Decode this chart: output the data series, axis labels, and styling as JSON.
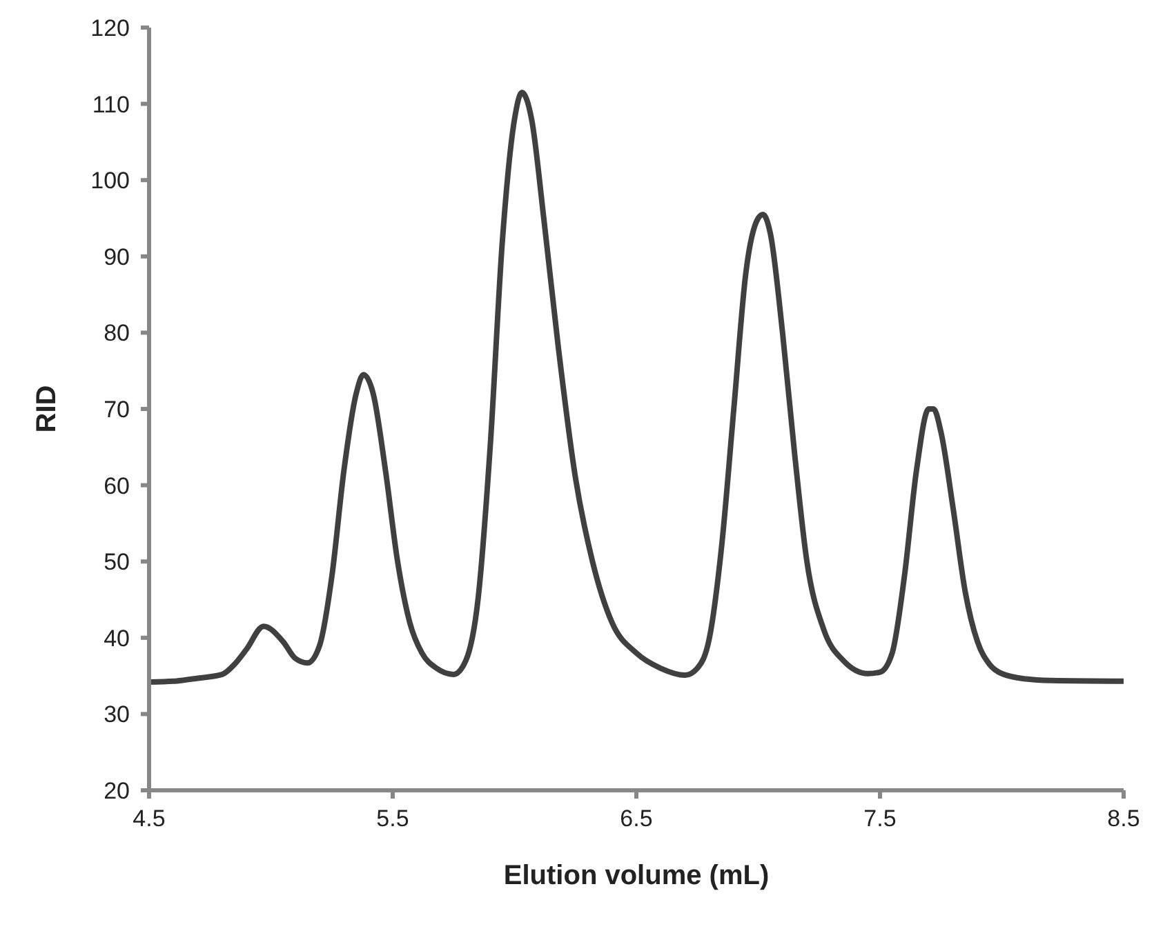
{
  "chart_data": {
    "type": "line",
    "xlabel": "Elution volume (mL)",
    "ylabel": "RID",
    "xlim": [
      4.5,
      8.5
    ],
    "xticks": [
      4.5,
      5.5,
      6.5,
      7.5,
      8.5
    ],
    "ylim": [
      20,
      120
    ],
    "yticks": [
      20,
      30,
      40,
      50,
      60,
      70,
      80,
      90,
      100,
      110,
      120
    ],
    "grid": false,
    "legend": false,
    "marker": "none",
    "line_style": "solid",
    "series": [
      {
        "color": "#404040",
        "x": [
          4.5,
          4.6,
          4.7,
          4.8,
          4.85,
          4.9,
          4.97,
          5.05,
          5.1,
          5.15,
          5.2,
          5.25,
          5.3,
          5.35,
          5.38,
          5.42,
          5.47,
          5.52,
          5.57,
          5.62,
          5.68,
          5.75,
          5.8,
          5.85,
          5.9,
          5.95,
          6.0,
          6.03,
          6.07,
          6.12,
          6.18,
          6.25,
          6.32,
          6.4,
          6.5,
          6.6,
          6.7,
          6.75,
          6.8,
          6.85,
          6.9,
          6.95,
          7.0,
          7.02,
          7.05,
          7.1,
          7.15,
          7.2,
          7.27,
          7.35,
          7.45,
          7.5,
          7.55,
          7.6,
          7.65,
          7.7,
          7.72,
          7.75,
          7.8,
          7.85,
          7.9,
          7.95,
          8.0,
          8.1,
          8.2,
          8.5
        ],
        "values": [
          34.2,
          34.3,
          34.7,
          35.2,
          36.5,
          38.5,
          41.5,
          39.5,
          37.3,
          36.7,
          39,
          48,
          62,
          72,
          74.5,
          72,
          62,
          50,
          42,
          38,
          36,
          35.2,
          37,
          45,
          65,
          92,
          108,
          111.5,
          108,
          95,
          78,
          61,
          50,
          42,
          38,
          36,
          35.1,
          36,
          40,
          52,
          70,
          88,
          95,
          95.5,
          93,
          80,
          64,
          50,
          41,
          37,
          35.3,
          35.5,
          38,
          48,
          62,
          70,
          70,
          67,
          57,
          46,
          39.5,
          36.5,
          35.3,
          34.6,
          34.4,
          34.3
        ]
      }
    ]
  }
}
